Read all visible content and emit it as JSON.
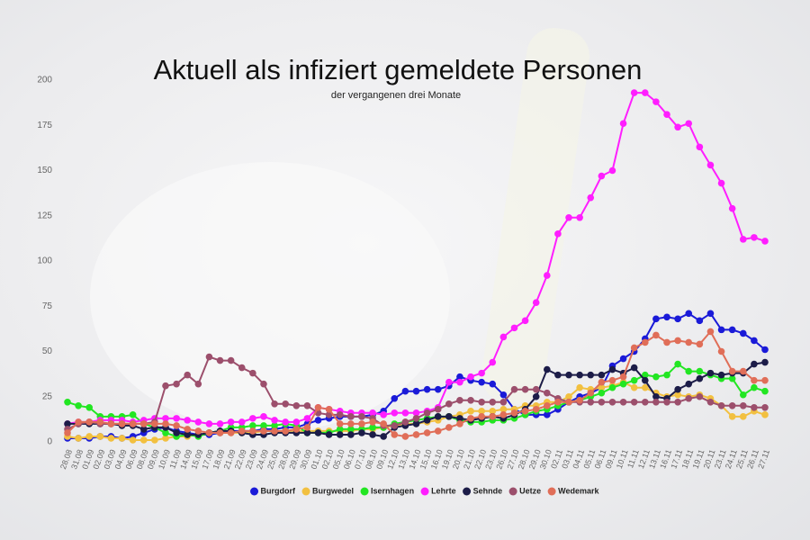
{
  "chart_data": {
    "type": "line",
    "title": "Aktuell als infiziert gemeldete Personen",
    "subtitle": "der vergangenen drei Monate",
    "categories": [
      "28.08",
      "31.08",
      "01.09",
      "02.09",
      "03.09",
      "04.09",
      "06.09",
      "08.09",
      "09.09",
      "10.09",
      "11.09",
      "14.09",
      "15.09",
      "17.09",
      "18.09",
      "21.09",
      "22.09",
      "23.09",
      "24.09",
      "25.09",
      "28.09",
      "29.09",
      "30.09",
      "01.10",
      "02.10",
      "05.10",
      "06.10",
      "07.10",
      "08.10",
      "09.10",
      "12.10",
      "13.10",
      "14.10",
      "15.10",
      "16.10",
      "19.10",
      "20.10",
      "21.10",
      "22.10",
      "23.10",
      "26.10",
      "27.10",
      "28.10",
      "29.10",
      "30.10",
      "02.11",
      "03.11",
      "04.11",
      "05.11",
      "06.11",
      "09.11",
      "10.11",
      "11.11",
      "12.11",
      "13.11",
      "16.11",
      "17.11",
      "18.11",
      "19.11",
      "20.11",
      "23.11",
      "24.11",
      "25.11",
      "26.11",
      "27.11"
    ],
    "ylim": [
      0,
      200
    ],
    "yticks": [
      0,
      25,
      50,
      75,
      100,
      125,
      150,
      175,
      200
    ],
    "grid": false,
    "series": [
      {
        "name": "Burgdorf",
        "color": "#1a1ad8",
        "values": [
          2,
          2,
          2,
          3,
          3,
          2,
          3,
          5,
          7,
          8,
          6,
          5,
          4,
          4,
          5,
          6,
          6,
          6,
          7,
          7,
          8,
          8,
          10,
          12,
          13,
          14,
          14,
          14,
          15,
          17,
          24,
          28,
          28,
          29,
          29,
          31,
          36,
          34,
          33,
          32,
          26,
          18,
          15,
          15,
          15,
          18,
          22,
          25,
          27,
          30,
          42,
          46,
          50,
          57,
          68,
          69,
          68,
          71,
          67,
          71,
          62,
          62,
          60,
          56,
          51
        ]
      },
      {
        "name": "Burgwedel",
        "color": "#f2c040",
        "values": [
          3,
          2,
          3,
          3,
          2,
          2,
          1,
          1,
          1,
          2,
          3,
          3,
          4,
          5,
          5,
          5,
          5,
          5,
          6,
          6,
          6,
          6,
          6,
          6,
          6,
          6,
          6,
          7,
          7,
          8,
          9,
          10,
          10,
          11,
          12,
          14,
          15,
          17,
          17,
          17,
          18,
          18,
          20,
          20,
          22,
          22,
          25,
          30,
          29,
          30,
          31,
          33,
          30,
          30,
          27,
          25,
          26,
          25,
          26,
          24,
          20,
          14,
          14,
          17,
          15
        ]
      },
      {
        "name": "Isernhagen",
        "color": "#22e622",
        "values": [
          22,
          20,
          19,
          14,
          14,
          14,
          15,
          10,
          8,
          5,
          3,
          4,
          3,
          5,
          6,
          8,
          8,
          9,
          9,
          9,
          10,
          9,
          5,
          5,
          5,
          7,
          7,
          7,
          8,
          8,
          10,
          11,
          12,
          13,
          14,
          14,
          12,
          11,
          11,
          12,
          12,
          13,
          15,
          17,
          18,
          20,
          22,
          23,
          25,
          27,
          30,
          32,
          34,
          37,
          36,
          37,
          43,
          39,
          39,
          37,
          35,
          35,
          26,
          30,
          28
        ]
      },
      {
        "name": "Lehrte",
        "color": "#ff1eff",
        "values": [
          10,
          11,
          11,
          12,
          12,
          12,
          11,
          12,
          13,
          13,
          13,
          12,
          11,
          10,
          10,
          11,
          11,
          13,
          14,
          12,
          11,
          11,
          13,
          19,
          18,
          17,
          16,
          16,
          16,
          15,
          16,
          16,
          16,
          17,
          19,
          33,
          33,
          36,
          38,
          44,
          58,
          63,
          67,
          77,
          92,
          115,
          124,
          124,
          135,
          147,
          150,
          176,
          193,
          193,
          188,
          181,
          174,
          176,
          163,
          153,
          143,
          129,
          112,
          113,
          111
        ]
      },
      {
        "name": "Sehnde",
        "color": "#1c1c48",
        "values": [
          10,
          10,
          10,
          10,
          10,
          9,
          9,
          7,
          8,
          8,
          5,
          4,
          4,
          5,
          6,
          6,
          5,
          4,
          4,
          5,
          5,
          5,
          5,
          5,
          4,
          4,
          4,
          5,
          4,
          3,
          8,
          9,
          10,
          12,
          14,
          14,
          13,
          12,
          13,
          14,
          13,
          15,
          18,
          25,
          40,
          37,
          37,
          37,
          37,
          37,
          40,
          38,
          41,
          34,
          25,
          24,
          29,
          32,
          35,
          38,
          37,
          38,
          38,
          43,
          44
        ]
      },
      {
        "name": "Uetze",
        "color": "#9c4f6c",
        "values": [
          7,
          10,
          11,
          10,
          10,
          10,
          10,
          10,
          11,
          31,
          32,
          37,
          32,
          47,
          45,
          45,
          41,
          38,
          32,
          21,
          21,
          20,
          20,
          16,
          15,
          15,
          14,
          14,
          13,
          9,
          9,
          11,
          13,
          16,
          18,
          21,
          23,
          23,
          22,
          22,
          22,
          29,
          29,
          29,
          27,
          24,
          22,
          22,
          22,
          22,
          22,
          22,
          22,
          22,
          22,
          22,
          22,
          24,
          25,
          22,
          20,
          20,
          20,
          19,
          19
        ]
      },
      {
        "name": "Wedemark",
        "color": "#e06e58",
        "values": [
          5,
          11,
          11,
          11,
          10,
          10,
          10,
          10,
          10,
          10,
          9,
          7,
          6,
          5,
          5,
          5,
          6,
          6,
          6,
          6,
          6,
          7,
          8,
          19,
          18,
          10,
          10,
          10,
          11,
          10,
          4,
          3,
          4,
          5,
          6,
          8,
          10,
          13,
          14,
          14,
          15,
          16,
          17,
          18,
          20,
          22,
          22,
          23,
          27,
          33,
          34,
          36,
          52,
          55,
          59,
          55,
          56,
          55,
          54,
          61,
          50,
          39,
          39,
          34,
          34
        ]
      }
    ]
  }
}
